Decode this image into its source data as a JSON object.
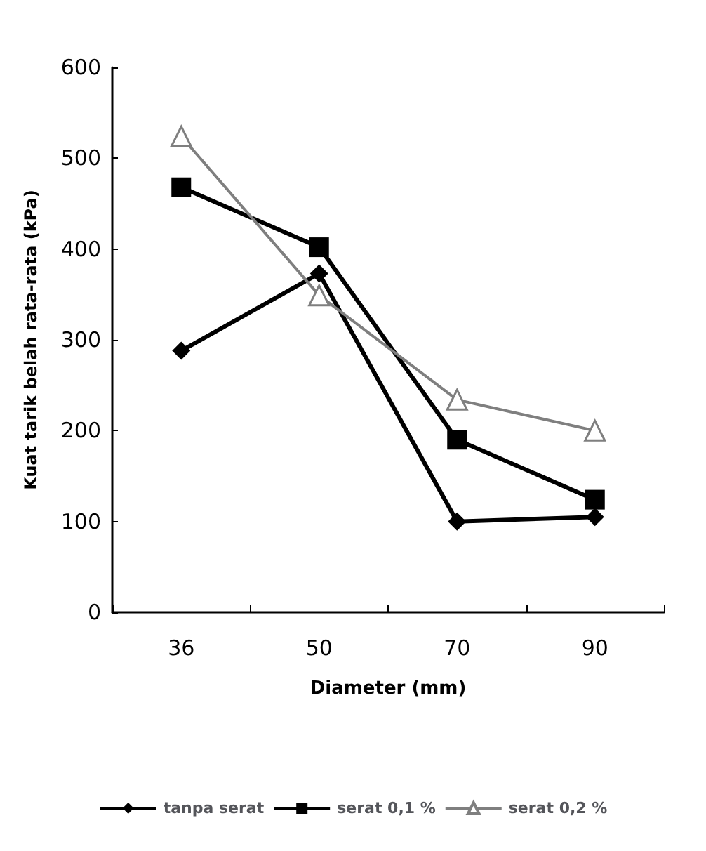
{
  "chart_data": {
    "type": "line",
    "xlabel": "Diameter (mm)",
    "ylabel": "Kuat tarik belah rata-rata (kPa)",
    "categories": [
      "36",
      "50",
      "70",
      "90"
    ],
    "ylim": [
      0,
      600
    ],
    "yticks": [
      0,
      100,
      200,
      300,
      400,
      500,
      600
    ],
    "grid": false,
    "legend": "bottom",
    "series": [
      {
        "name": "tanpa serat",
        "color": "#000000",
        "marker": "diamond",
        "values": [
          288,
          373,
          100,
          105
        ]
      },
      {
        "name": "serat 0,1 %",
        "color": "#000000",
        "marker": "square",
        "values": [
          468,
          402,
          190,
          124
        ]
      },
      {
        "name": "serat 0,2 %",
        "color": "#7f7f7f",
        "marker": "triangle",
        "values": [
          524,
          349,
          234,
          200
        ]
      }
    ]
  }
}
